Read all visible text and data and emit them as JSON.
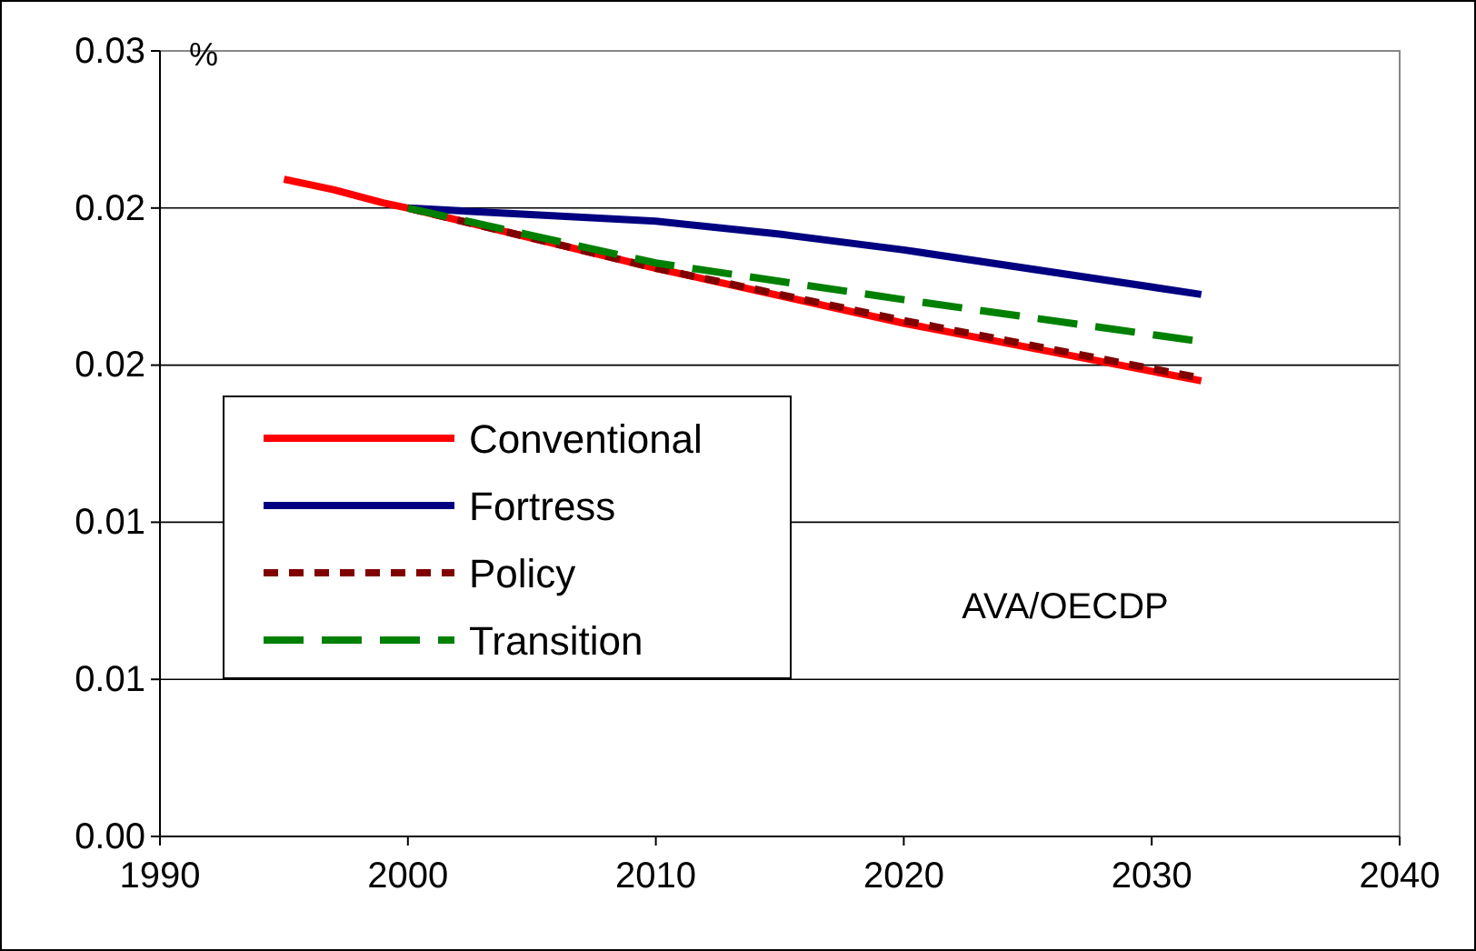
{
  "chart_data": {
    "type": "line",
    "ylabel": "%",
    "xlim": [
      1990,
      2040
    ],
    "xticks": [
      1990,
      2000,
      2010,
      2020,
      2030,
      2040
    ],
    "ylim": [
      0,
      0.03
    ],
    "yticks": [
      {
        "value": 0,
        "label": "0.00"
      },
      {
        "value": 0.006,
        "label": "0.01"
      },
      {
        "value": 0.012,
        "label": "0.01"
      },
      {
        "value": 0.018,
        "label": "0.02"
      },
      {
        "value": 0.024,
        "label": "0.02"
      },
      {
        "value": 0.03,
        "label": "0.03"
      }
    ],
    "grid": "y",
    "legend": "left",
    "annotations": [
      "AVA/OECDP"
    ],
    "series": [
      {
        "name": "Conventional",
        "color": "#ff0000",
        "line_style": "solid",
        "x": [
          1995,
          1997,
          1999,
          2000,
          2010,
          2020,
          2032
        ],
        "values": [
          0.0251,
          0.0247,
          0.0242,
          0.024,
          0.0217,
          0.0196,
          0.0174
        ]
      },
      {
        "name": "Fortress",
        "color": "#000080",
        "line_style": "solid",
        "x": [
          2000,
          2010,
          2015,
          2020,
          2032
        ],
        "values": [
          0.024,
          0.0235,
          0.023,
          0.0224,
          0.0207
        ]
      },
      {
        "name": "Policy",
        "color": "#800000",
        "line_style": "dotted",
        "x": [
          2000,
          2010,
          2020,
          2032
        ],
        "values": [
          0.024,
          0.0217,
          0.0197,
          0.0175
        ]
      },
      {
        "name": "Transition",
        "color": "#008000",
        "line_style": "dashed",
        "x": [
          2000,
          2010,
          2020,
          2032
        ],
        "values": [
          0.024,
          0.0219,
          0.0205,
          0.0189
        ]
      }
    ]
  }
}
